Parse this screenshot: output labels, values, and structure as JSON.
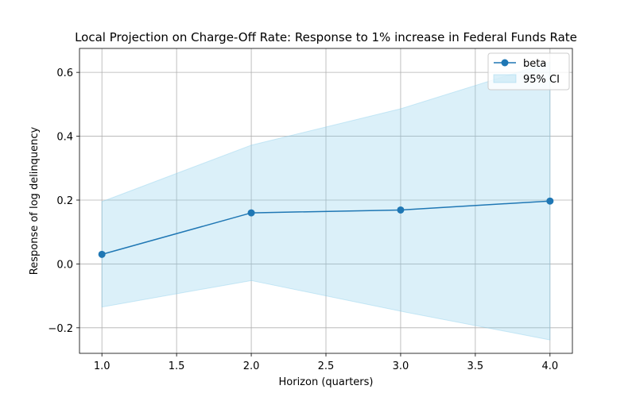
{
  "chart_data": {
    "type": "line",
    "title": "Local Projection on Charge-Off Rate: Response to 1% increase in Federal Funds Rate",
    "xlabel": "Horizon (quarters)",
    "ylabel": "Response of log delinquency",
    "xlim": [
      0.85,
      4.15
    ],
    "ylim": [
      -0.28,
      0.675
    ],
    "xticks": [
      1.0,
      1.5,
      2.0,
      2.5,
      3.0,
      3.5,
      4.0
    ],
    "xtick_labels": [
      "1.0",
      "1.5",
      "2.0",
      "2.5",
      "3.0",
      "3.5",
      "4.0"
    ],
    "yticks": [
      -0.2,
      0.0,
      0.2,
      0.4,
      0.6
    ],
    "ytick_labels": [
      "−0.2",
      "0.0",
      "0.2",
      "0.4",
      "0.6"
    ],
    "grid": true,
    "legend_position": "top-right",
    "series": [
      {
        "name": "beta",
        "x": [
          1,
          2,
          3,
          4
        ],
        "y": [
          0.03,
          0.16,
          0.169,
          0.197
        ],
        "color": "#1f77b4",
        "marker": "circle"
      }
    ],
    "band": {
      "name": "95% CI",
      "x": [
        1,
        2,
        3,
        4
      ],
      "lower": [
        -0.135,
        -0.052,
        -0.148,
        -0.238
      ],
      "upper": [
        0.195,
        0.372,
        0.486,
        0.632
      ],
      "color": "#87ceeb",
      "opacity": 0.3
    }
  }
}
